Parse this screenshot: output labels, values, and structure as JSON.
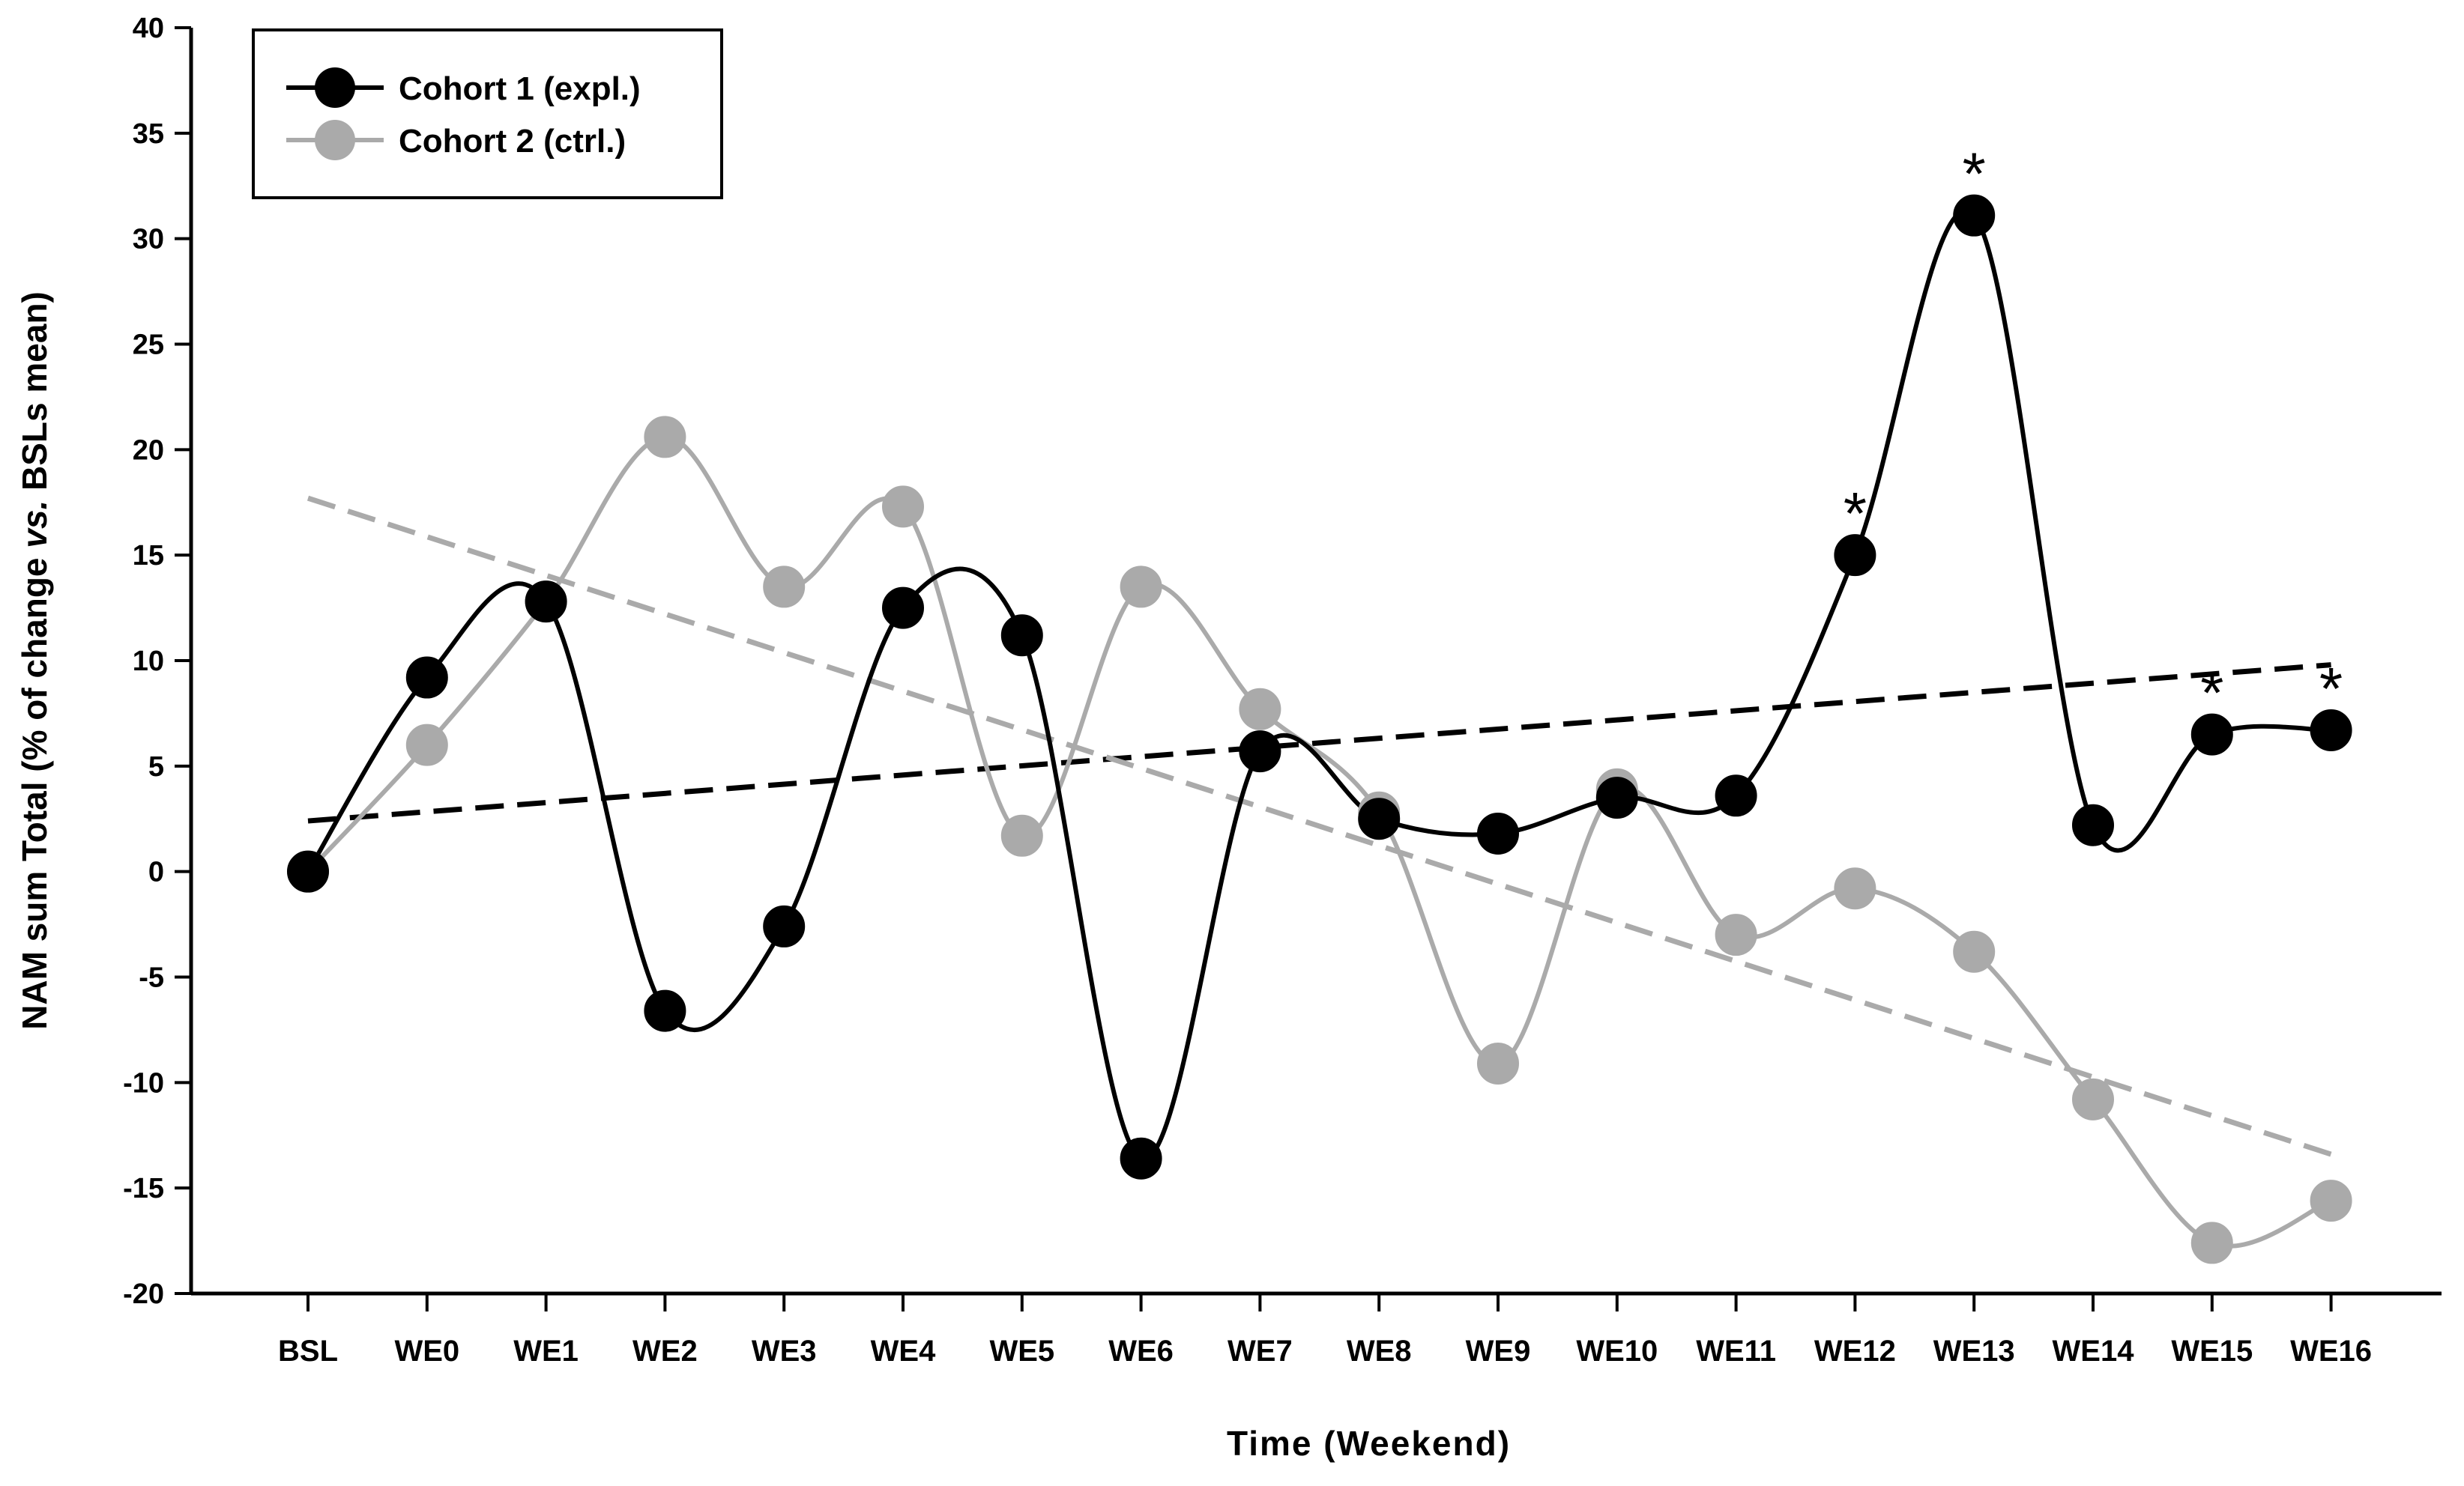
{
  "chart_data": {
    "type": "line",
    "title": "",
    "xlabel": "Time (Weekend)",
    "ylabel_parts": [
      "NAM sum Total (% of change ",
      "vs.",
      " BSLs mean)"
    ],
    "ylim": [
      -20,
      40
    ],
    "yticks": [
      -20,
      -15,
      -10,
      -5,
      0,
      5,
      10,
      15,
      20,
      25,
      30,
      35,
      40
    ],
    "categories": [
      "BSL",
      "WE0",
      "WE1",
      "WE2",
      "WE3",
      "WE4",
      "WE5",
      "WE6",
      "WE7",
      "WE8",
      "WE9",
      "WE10",
      "WE11",
      "WE12",
      "WE13",
      "WE14",
      "WE15",
      "WE16"
    ],
    "series": [
      {
        "name": "Cohort 1 (expl.)",
        "color": "#000000",
        "values": [
          0,
          9.2,
          12.8,
          -6.6,
          -2.6,
          12.5,
          11.2,
          -13.6,
          5.7,
          2.5,
          1.8,
          3.5,
          3.6,
          15.0,
          31.1,
          2.2,
          6.5,
          6.7
        ],
        "trend": {
          "start": 2.4,
          "end": 9.8
        }
      },
      {
        "name": "Cohort 2 (ctrl.)",
        "color": "#aaaaaa",
        "values": [
          0,
          6.0,
          12.8,
          20.6,
          13.5,
          17.3,
          1.7,
          13.5,
          7.7,
          2.8,
          -9.1,
          3.9,
          -3.0,
          -0.8,
          -3.8,
          -10.8,
          -17.6,
          -15.6
        ],
        "trend": {
          "start": 17.7,
          "end": -13.4
        }
      }
    ],
    "annotations": [
      {
        "text": "*",
        "category": "WE12",
        "value": 15.0
      },
      {
        "text": "*",
        "category": "WE13",
        "value": 31.1
      },
      {
        "text": "*",
        "category": "WE15",
        "value": 6.5
      },
      {
        "text": "*",
        "category": "WE16",
        "value": 6.7
      }
    ],
    "legend": {
      "position": "top-left"
    },
    "grid": false
  }
}
